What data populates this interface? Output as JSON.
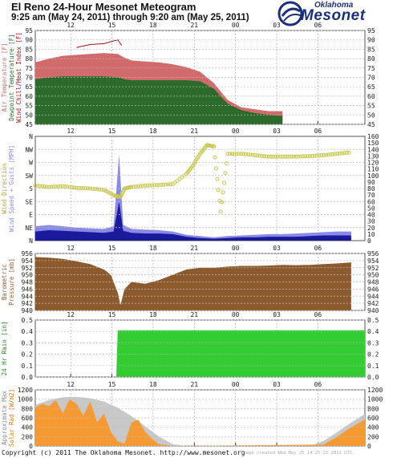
{
  "header": {
    "title": "El Reno 24-Hour Mesonet Meteogram",
    "subtitle": "9:25 am (May 24, 2011) through 9:20 am (May 25, 2011)",
    "logo_top": "Oklahoma",
    "logo_main": "Mesonet"
  },
  "footer": {
    "copyright": "Copyright (c) 2011 The Oklahoma Mesonet. http://www.mesonet.org",
    "note": "Image created Wed May 25 14:25:25 2011 UTC."
  },
  "colors": {
    "air_temp": "#d16a6a",
    "dewpoint": "#2c6b2c",
    "heat_index_line": "#a01010",
    "wind_dir_marker": "#c8c850",
    "wind_speed": "#1a1a9a",
    "wind_gust": "#8a8ae8",
    "pressure": "#8c5a2c",
    "rain": "#33cc33",
    "solar_max": "#c8c8c8",
    "solar_obs": "#f59a33"
  },
  "chart_data": [
    {
      "type": "area",
      "x_ticks": [
        "12",
        "15",
        "18",
        "21",
        "00",
        "03",
        "06"
      ],
      "y_ticks": [
        45,
        50,
        55,
        60,
        65,
        70,
        75,
        80,
        85,
        90,
        95
      ],
      "ylim": [
        45,
        95
      ],
      "ylabel_parts": [
        "Air Temperature [F]",
        "Dewpoint Temperature [F]",
        "Wind Chill/Heat Index [F]"
      ],
      "series": [
        {
          "name": "Air Temperature",
          "x": [
            0,
            1,
            2,
            3,
            4,
            5,
            6,
            6.5,
            7,
            8,
            9,
            10,
            11,
            12,
            13,
            14,
            15,
            16,
            17,
            18
          ],
          "values": [
            78,
            80,
            81.5,
            82,
            82.5,
            83,
            82.5,
            80.5,
            79,
            78.5,
            78,
            77,
            75.5,
            73,
            67,
            58,
            54,
            53,
            52,
            52
          ]
        },
        {
          "name": "Dewpoint Temperature",
          "x": [
            0,
            1,
            2,
            3,
            4,
            5,
            6,
            6.5,
            7,
            8,
            9,
            10,
            11,
            12,
            13,
            14,
            15,
            16,
            17,
            18
          ],
          "values": [
            69,
            70,
            70.5,
            70.5,
            70.5,
            70.5,
            70,
            69,
            68.5,
            68.5,
            68.5,
            68.5,
            68.5,
            68,
            64,
            56,
            52.5,
            51,
            50,
            49.5
          ]
        },
        {
          "name": "Heat Index",
          "x": [
            3,
            4,
            5,
            5.5,
            6,
            6.3
          ],
          "values": [
            86,
            87.5,
            88,
            89,
            90,
            87
          ]
        }
      ]
    },
    {
      "type": "scatter",
      "x_ticks": [
        "12",
        "15",
        "18",
        "21",
        "00",
        "03",
        "06"
      ],
      "y_ticks_left": [
        "N",
        "NE",
        "E",
        "SE",
        "S",
        "SW",
        "W",
        "NW",
        "N"
      ],
      "y_ticks_right": [
        0,
        10,
        20,
        30,
        40,
        50,
        60,
        70,
        80,
        90,
        100,
        110,
        120,
        130,
        140,
        150,
        160
      ],
      "ylim": [
        0,
        160
      ],
      "ylabel_parts": [
        "Wind Direction",
        "Wind Speed + Gusts [MPH]"
      ],
      "series": [
        {
          "name": "Wind Direction",
          "x": [
            0,
            1,
            2,
            3,
            4,
            5,
            5.8,
            6.2,
            6.5,
            7,
            8,
            9,
            10,
            11,
            11.5,
            12,
            12.5,
            13,
            13.5,
            14,
            15,
            16,
            17,
            18,
            19,
            20,
            21,
            22,
            23
          ],
          "values": [
            190,
            185,
            188,
            182,
            180,
            175,
            155,
            150,
            180,
            185,
            190,
            192,
            195,
            230,
            260,
            300,
            330,
            325,
            100,
            300,
            300,
            295,
            290,
            290,
            290,
            292,
            295,
            300,
            305
          ]
        },
        {
          "name": "Wind Speed",
          "x": [
            0,
            1,
            2,
            3,
            4,
            5,
            5.7,
            6.1,
            6.4,
            7,
            8,
            9,
            10,
            11,
            12,
            13,
            14,
            15,
            16,
            17,
            18,
            19,
            20,
            21,
            22,
            23
          ],
          "values": [
            14,
            16,
            15,
            14,
            13,
            12,
            14,
            60,
            15,
            12,
            11,
            11,
            10,
            6,
            4,
            3,
            4,
            5,
            5,
            6,
            6,
            6,
            7,
            8,
            8,
            8
          ]
        },
        {
          "name": "Wind Gust",
          "x": [
            0,
            1,
            2,
            3,
            4,
            5,
            5.7,
            6.1,
            6.4,
            7,
            8,
            9,
            10,
            11,
            12,
            13,
            14,
            15,
            16,
            17,
            18,
            19,
            20,
            21,
            22,
            23
          ],
          "values": [
            22,
            24,
            22,
            20,
            19,
            18,
            22,
            132,
            24,
            18,
            17,
            16,
            14,
            9,
            7,
            5,
            7,
            8,
            9,
            10,
            10,
            11,
            12,
            13,
            14,
            14
          ]
        }
      ]
    },
    {
      "type": "area",
      "x_ticks": [
        "12",
        "15",
        "18",
        "21",
        "00",
        "03",
        "06"
      ],
      "y_ticks": [
        940,
        942,
        944,
        946,
        948,
        950,
        952,
        954,
        956
      ],
      "ylim": [
        940,
        956
      ],
      "ylabel_parts": [
        "Barometric",
        "Pressure [mb]"
      ],
      "series": [
        {
          "name": "Barometric Pressure",
          "x": [
            0,
            1,
            2,
            3,
            4,
            5,
            5.5,
            6,
            6.2,
            6.5,
            7,
            8,
            9,
            10,
            11,
            12,
            13,
            14,
            15,
            16,
            17,
            18,
            19,
            20,
            21,
            22,
            23
          ],
          "values": [
            955,
            954.8,
            954.5,
            953.8,
            953,
            951.5,
            950,
            945,
            941.5,
            946,
            948,
            947.5,
            948.5,
            950,
            951.5,
            952,
            952,
            952.3,
            952.5,
            952.5,
            952.6,
            952.8,
            952.7,
            952.8,
            953,
            953.2,
            953.5
          ]
        }
      ]
    },
    {
      "type": "area",
      "x_ticks": [
        "12",
        "15",
        "18",
        "21",
        "00",
        "03",
        "06"
      ],
      "y_ticks": [
        0.0,
        0.1,
        0.2,
        0.3,
        0.4,
        0.5
      ],
      "ylim": [
        0,
        0.5
      ],
      "ylabel_parts": [
        "24 Hr Rain [in]"
      ],
      "series": [
        {
          "name": "24 Hr Rain",
          "x": [
            0,
            5.9,
            6.0,
            6.2,
            24
          ],
          "values": [
            0,
            0,
            0.41,
            0.41,
            0.41
          ]
        }
      ]
    },
    {
      "type": "area",
      "x_ticks": [
        "12",
        "15",
        "18",
        "21",
        "00",
        "03",
        "06"
      ],
      "y_ticks": [
        0,
        200,
        400,
        600,
        800,
        1000,
        1200
      ],
      "ylim": [
        0,
        1200
      ],
      "ylabel_parts": [
        "Approximate Max",
        "Solar Rad [W/m2]"
      ],
      "series": [
        {
          "name": "Approximate Max",
          "x": [
            0,
            1,
            2,
            3,
            4,
            5,
            6,
            7,
            8,
            9,
            10,
            11,
            20,
            21,
            22,
            23,
            24
          ],
          "values": [
            880,
            980,
            1040,
            1050,
            1020,
            950,
            820,
            640,
            420,
            200,
            40,
            0,
            0,
            110,
            300,
            500,
            680
          ]
        },
        {
          "name": "Solar Rad",
          "x": [
            0,
            0.5,
            1,
            1.5,
            2,
            2.5,
            3,
            3.5,
            4,
            4.5,
            5,
            5.5,
            6,
            6.5,
            7,
            7.5,
            8,
            8.5,
            9,
            10,
            21,
            22,
            23,
            24
          ],
          "values": [
            820,
            900,
            850,
            980,
            700,
            1000,
            900,
            650,
            950,
            500,
            700,
            300,
            100,
            50,
            500,
            560,
            300,
            150,
            40,
            0,
            30,
            200,
            400,
            560
          ]
        }
      ]
    }
  ]
}
